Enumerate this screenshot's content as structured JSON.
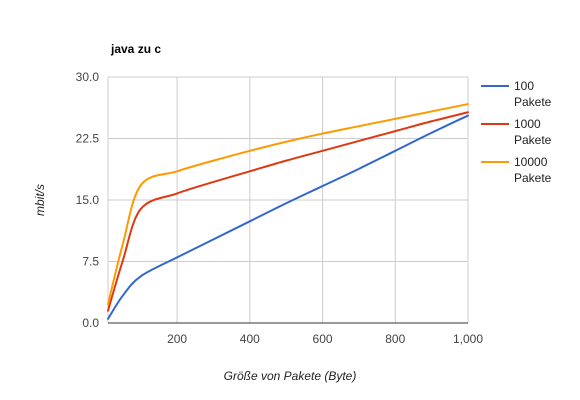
{
  "chart_data": {
    "type": "line",
    "title": "java zu c",
    "xlabel": "Größe von Pakete (Byte)",
    "ylabel": "mbit/s",
    "xlim": [
      10,
      1000
    ],
    "ylim": [
      0,
      30
    ],
    "x_ticks": [
      200,
      400,
      600,
      800,
      1000
    ],
    "x_tick_labels": [
      "200",
      "400",
      "600",
      "800",
      "1,000"
    ],
    "y_ticks": [
      0,
      7.5,
      15,
      22.5,
      30
    ],
    "y_tick_labels": [
      "0.0",
      "7.5",
      "15.0",
      "22.5",
      "30.0"
    ],
    "grid": true,
    "legend_position": "right",
    "series": [
      {
        "name": "100 Pakete",
        "legend_lines": [
          "100",
          "Pakete"
        ],
        "color": "#3366cc",
        "x": [
          10,
          50,
          100,
          200,
          300,
          400,
          500,
          600,
          700,
          800,
          900,
          1000
        ],
        "y": [
          0.5,
          3.3,
          5.7,
          8.0,
          10.2,
          12.4,
          14.6,
          16.7,
          18.8,
          21.0,
          23.2,
          25.3
        ]
      },
      {
        "name": "1000 Pakete",
        "legend_lines": [
          "1000",
          "Pakete"
        ],
        "color": "#dc3912",
        "x": [
          10,
          50,
          100,
          200,
          300,
          400,
          500,
          600,
          700,
          800,
          900,
          1000
        ],
        "y": [
          1.5,
          7.5,
          13.9,
          15.8,
          17.2,
          18.5,
          19.8,
          21.0,
          22.2,
          23.4,
          24.6,
          25.7
        ]
      },
      {
        "name": "10000 Pakete",
        "legend_lines": [
          "10000",
          "Pakete"
        ],
        "color": "#ff9900",
        "x": [
          10,
          50,
          100,
          200,
          300,
          400,
          500,
          600,
          700,
          800,
          900,
          1000
        ],
        "y": [
          2.3,
          9.5,
          16.8,
          18.5,
          19.8,
          21.0,
          22.1,
          23.1,
          24.0,
          24.9,
          25.8,
          26.7
        ]
      }
    ]
  }
}
